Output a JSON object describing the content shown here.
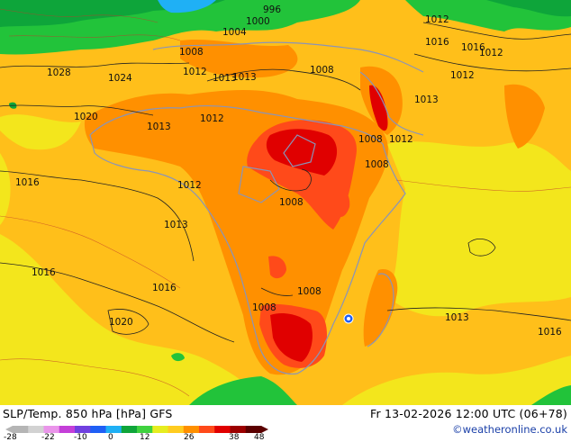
{
  "title": "SLP/Temp. 850 hPa [hPa] GFS",
  "run": "Fr 13-02-2026 12:00 UTC (06+78)",
  "credit": "©weatheronline.co.uk",
  "legend": {
    "ticks": [
      "-28",
      "-22",
      "-10",
      "0",
      "12",
      "26",
      "38",
      "48"
    ],
    "colors": [
      "#b5b5b5",
      "#d2d2d2",
      "#ea95ea",
      "#c43fd8",
      "#7040e0",
      "#1f5ff5",
      "#1fb0f5",
      "#0fa53a",
      "#3fd23f",
      "#e6ed20",
      "#ffcc20",
      "#ff9000",
      "#ff4a1a",
      "#e00000",
      "#9c0000",
      "#5b0000"
    ]
  },
  "isobars": [
    {
      "label": "1000",
      "value": 1000
    },
    {
      "label": "1004",
      "value": 1004
    },
    {
      "label": "1008",
      "value": 1008
    },
    {
      "label": "1012",
      "value": 1012
    },
    {
      "label": "1013",
      "value": 1013
    },
    {
      "label": "1016",
      "value": 1016
    },
    {
      "label": "1020",
      "value": 1020
    },
    {
      "label": "1024",
      "value": 1024
    },
    {
      "label": "1028",
      "value": 1028
    }
  ],
  "pressure_labels": [
    "996",
    "1000",
    "1004",
    "1008",
    "1008",
    "1008",
    "1008",
    "1008",
    "1008",
    "1008",
    "1012",
    "1012",
    "1012",
    "1012",
    "1012",
    "1012",
    "1012",
    "1013",
    "1013",
    "1013",
    "1013",
    "1013",
    "1013",
    "1016",
    "1016",
    "1016",
    "1016",
    "1016",
    "1016",
    "1020",
    "1020",
    "1024",
    "1028"
  ]
}
